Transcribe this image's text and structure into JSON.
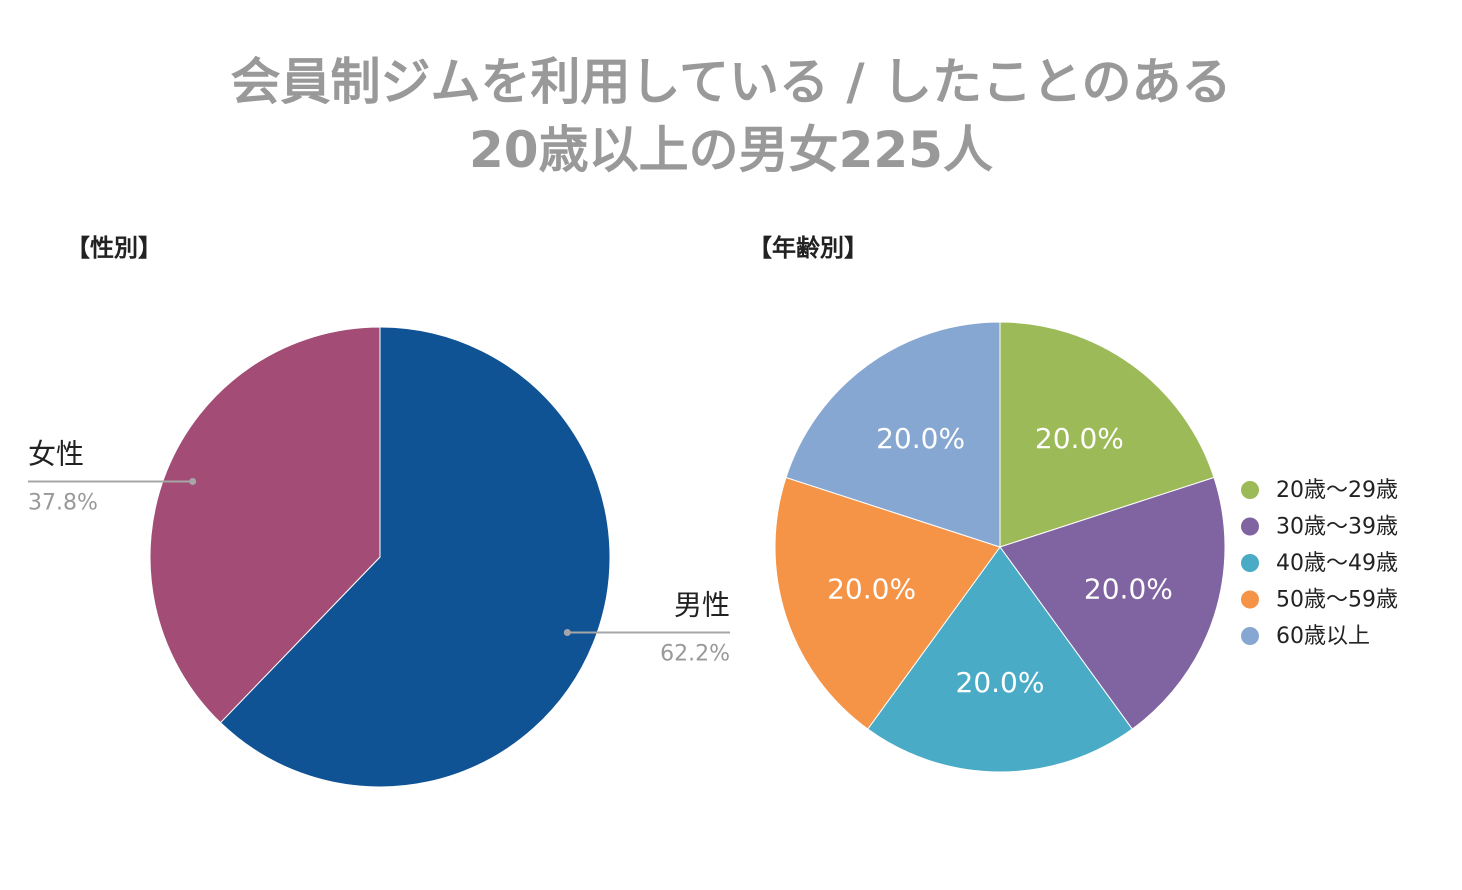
{
  "title": {
    "line1": "会員制ジムを利用している / したことのある",
    "line2": "20歳以上の男女225人"
  },
  "chart_data": [
    {
      "type": "pie",
      "title": "【性別】",
      "categories": [
        "男性",
        "女性"
      ],
      "values": [
        62.2,
        37.8
      ],
      "value_labels": [
        "62.2%",
        "37.8%"
      ],
      "colors": [
        "#0f5395",
        "#a34c76"
      ],
      "labels_style": "callout"
    },
    {
      "type": "pie",
      "title": "【年齢別】",
      "categories": [
        "20歳〜29歳",
        "30歳〜39歳",
        "40歳〜49歳",
        "50歳〜59歳",
        "60歳以上"
      ],
      "values": [
        20.0,
        20.0,
        20.0,
        20.0,
        20.0
      ],
      "value_labels": [
        "20.0%",
        "20.0%",
        "20.0%",
        "20.0%",
        "20.0%"
      ],
      "colors": [
        "#9cba58",
        "#8064a1",
        "#4aabc6",
        "#f59447",
        "#86a7d1"
      ],
      "legend_position": "right"
    }
  ]
}
